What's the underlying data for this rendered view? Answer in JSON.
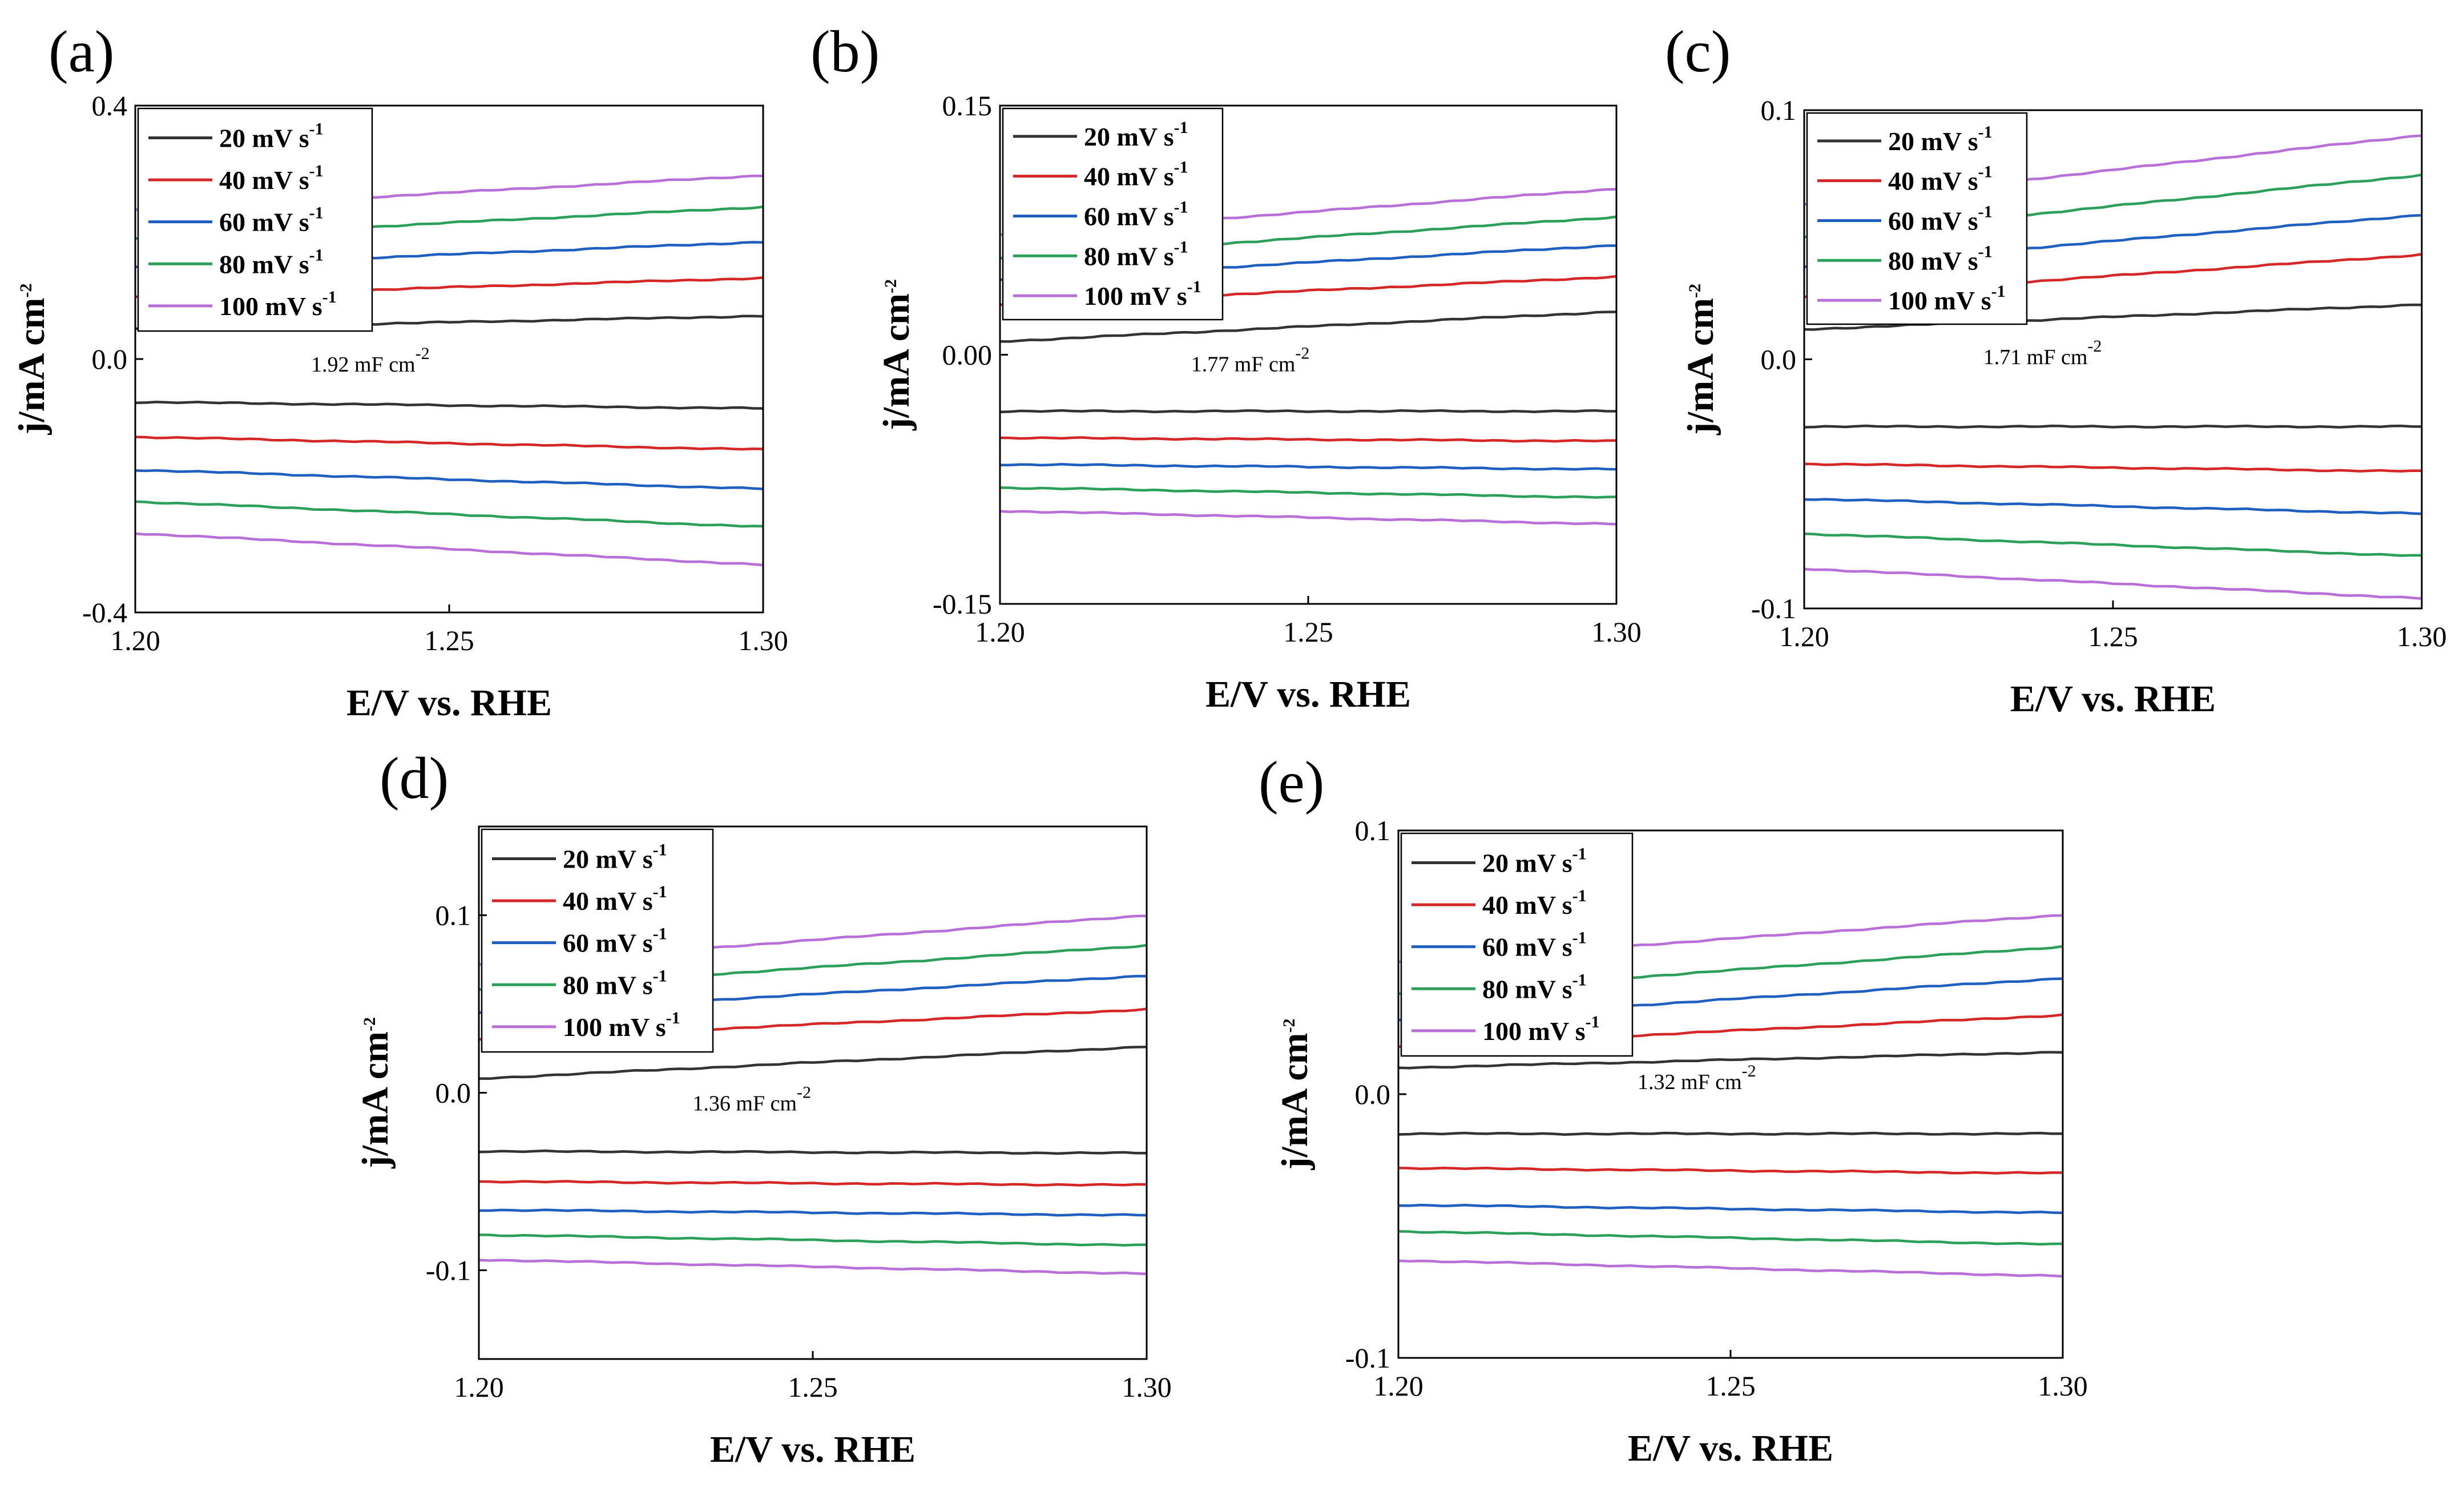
{
  "chart_data": [
    {
      "type": "line",
      "panel_label": "(a)",
      "xlabel": "E/V vs. RHE",
      "ylabel": "j/mA cm",
      "ylabel_sup": "-2",
      "xlim": [
        1.2,
        1.3
      ],
      "ylim": [
        -0.4,
        0.4
      ],
      "x_ticks": [
        "1.20",
        "1.25",
        "1.30"
      ],
      "y_ticks": [
        {
          "v": 0.4,
          "label": "0.4"
        },
        {
          "v": 0.0,
          "label": "0.0"
        },
        {
          "v": -0.4,
          "label": "-0.4"
        }
      ],
      "legend": [
        "20 mV s",
        "40 mV s",
        "60 mV s",
        "80 mV s",
        "100 mV s"
      ],
      "legend_sup": "-1",
      "annotation": {
        "text": "1.92 mF cm",
        "sup": "-2",
        "x": 1.228,
        "y": -0.02
      },
      "series": [
        {
          "name": "20 mV s-1",
          "color": "#333333",
          "anodic": [
            0.048,
            0.068
          ],
          "cathodic": [
            -0.068,
            -0.078
          ]
        },
        {
          "name": "40 mV s-1",
          "color": "#d62728",
          "anodic": [
            0.098,
            0.128
          ],
          "cathodic": [
            -0.123,
            -0.143
          ]
        },
        {
          "name": "60 mV s-1",
          "color": "#1f5fbf",
          "anodic": [
            0.145,
            0.185
          ],
          "cathodic": [
            -0.175,
            -0.205
          ]
        },
        {
          "name": "80 mV s-1",
          "color": "#2ca05a",
          "anodic": [
            0.19,
            0.24
          ],
          "cathodic": [
            -0.225,
            -0.265
          ]
        },
        {
          "name": "100 mV s-1",
          "color": "#b86fd8",
          "anodic": [
            0.235,
            0.29
          ],
          "cathodic": [
            -0.275,
            -0.325
          ]
        }
      ]
    },
    {
      "type": "line",
      "panel_label": "(b)",
      "xlabel": "E/V vs. RHE",
      "ylabel": "j/mA cm",
      "ylabel_sup": "-2",
      "xlim": [
        1.2,
        1.3
      ],
      "ylim": [
        -0.15,
        0.15
      ],
      "x_ticks": [
        "1.20",
        "1.25",
        "1.30"
      ],
      "y_ticks": [
        {
          "v": 0.15,
          "label": "0.15"
        },
        {
          "v": 0.0,
          "label": "0.00"
        },
        {
          "v": -0.15,
          "label": "-0.15"
        }
      ],
      "legend": [
        "20 mV s",
        "40 mV s",
        "60 mV s",
        "80 mV s",
        "100 mV s"
      ],
      "legend_sup": "-1",
      "annotation": {
        "text": "1.77 mF cm",
        "sup": "-2",
        "x": 1.231,
        "y": -0.01
      },
      "series": [
        {
          "name": "20 mV s-1",
          "color": "#333333",
          "anodic": [
            0.008,
            0.026
          ],
          "cathodic": [
            -0.034,
            -0.034
          ]
        },
        {
          "name": "40 mV s-1",
          "color": "#d62728",
          "anodic": [
            0.03,
            0.047
          ],
          "cathodic": [
            -0.05,
            -0.052
          ]
        },
        {
          "name": "60 mV s-1",
          "color": "#1f5fbf",
          "anodic": [
            0.045,
            0.066
          ],
          "cathodic": [
            -0.066,
            -0.069
          ]
        },
        {
          "name": "80 mV s-1",
          "color": "#2ca05a",
          "anodic": [
            0.058,
            0.083
          ],
          "cathodic": [
            -0.08,
            -0.086
          ]
        },
        {
          "name": "100 mV s-1",
          "color": "#b86fd8",
          "anodic": [
            0.072,
            0.1
          ],
          "cathodic": [
            -0.094,
            -0.102
          ]
        }
      ]
    },
    {
      "type": "line",
      "panel_label": "(c)",
      "xlabel": "E/V vs. RHE",
      "ylabel": "j/mA cm",
      "ylabel_sup": "-2",
      "xlim": [
        1.2,
        1.3
      ],
      "ylim": [
        -0.1,
        0.1
      ],
      "x_ticks": [
        "1.20",
        "1.25",
        "1.30"
      ],
      "y_ticks": [
        {
          "v": 0.1,
          "label": "0.1"
        },
        {
          "v": 0.0,
          "label": "0.0"
        },
        {
          "v": -0.1,
          "label": "-0.1"
        }
      ],
      "legend": [
        "20 mV s",
        "40 mV s",
        "60 mV s",
        "80 mV s",
        "100 mV s"
      ],
      "legend_sup": "-1",
      "annotation": {
        "text": "1.71 mF cm",
        "sup": "-2",
        "x": 1.229,
        "y": -0.002
      },
      "series": [
        {
          "name": "20 mV s-1",
          "color": "#333333",
          "anodic": [
            0.012,
            0.022
          ],
          "cathodic": [
            -0.027,
            -0.027
          ]
        },
        {
          "name": "40 mV s-1",
          "color": "#d62728",
          "anodic": [
            0.025,
            0.042
          ],
          "cathodic": [
            -0.042,
            -0.045
          ]
        },
        {
          "name": "60 mV s-1",
          "color": "#1f5fbf",
          "anodic": [
            0.037,
            0.058
          ],
          "cathodic": [
            -0.056,
            -0.062
          ]
        },
        {
          "name": "80 mV s-1",
          "color": "#2ca05a",
          "anodic": [
            0.049,
            0.074
          ],
          "cathodic": [
            -0.07,
            -0.079
          ]
        },
        {
          "name": "100 mV s-1",
          "color": "#b86fd8",
          "anodic": [
            0.062,
            0.09
          ],
          "cathodic": [
            -0.084,
            -0.096
          ]
        }
      ]
    },
    {
      "type": "line",
      "panel_label": "(d)",
      "xlabel": "E/V vs. RHE",
      "ylabel": "j/mA cm",
      "ylabel_sup": "-2",
      "xlim": [
        1.2,
        1.3
      ],
      "ylim": [
        -0.15,
        0.15
      ],
      "x_ticks": [
        "1.20",
        "1.25",
        "1.30"
      ],
      "y_ticks": [
        {
          "v": 0.1,
          "label": "0.1"
        },
        {
          "v": 0.0,
          "label": "0.0"
        },
        {
          "v": -0.1,
          "label": "-0.1"
        }
      ],
      "legend": [
        "20 mV s",
        "40 mV s",
        "60 mV s",
        "80 mV s",
        "100 mV s"
      ],
      "legend_sup": "-1",
      "annotation": {
        "text": "1.36 mF cm",
        "sup": "-2",
        "x": 1.232,
        "y": -0.01
      },
      "series": [
        {
          "name": "20 mV s-1",
          "color": "#333333",
          "anodic": [
            0.008,
            0.026
          ],
          "cathodic": [
            -0.033,
            -0.034
          ]
        },
        {
          "name": "40 mV s-1",
          "color": "#d62728",
          "anodic": [
            0.03,
            0.047
          ],
          "cathodic": [
            -0.05,
            -0.052
          ]
        },
        {
          "name": "60 mV s-1",
          "color": "#1f5fbf",
          "anodic": [
            0.045,
            0.066
          ],
          "cathodic": [
            -0.066,
            -0.069
          ]
        },
        {
          "name": "80 mV s-1",
          "color": "#2ca05a",
          "anodic": [
            0.058,
            0.083
          ],
          "cathodic": [
            -0.08,
            -0.086
          ]
        },
        {
          "name": "100 mV s-1",
          "color": "#b86fd8",
          "anodic": [
            0.072,
            0.1
          ],
          "cathodic": [
            -0.094,
            -0.102
          ]
        }
      ]
    },
    {
      "type": "line",
      "panel_label": "(e)",
      "xlabel": "E/V vs. RHE",
      "ylabel": "j/mA cm",
      "ylabel_sup": "-2",
      "xlim": [
        1.2,
        1.3
      ],
      "ylim": [
        -0.1,
        0.1
      ],
      "x_ticks": [
        "1.20",
        "1.25",
        "1.30"
      ],
      "y_ticks": [
        {
          "v": 0.1,
          "label": "0.1"
        },
        {
          "v": 0.0,
          "label": "0.0"
        },
        {
          "v": -0.1,
          "label": "-0.1"
        }
      ],
      "legend": [
        "20 mV s",
        "40 mV s",
        "60 mV s",
        "80 mV s",
        "100 mV s"
      ],
      "legend_sup": "-1",
      "annotation": {
        "text": "1.32 mF cm",
        "sup": "-2",
        "x": 1.236,
        "y": 0.002
      },
      "series": [
        {
          "name": "20 mV s-1",
          "color": "#333333",
          "anodic": [
            0.01,
            0.016
          ],
          "cathodic": [
            -0.015,
            -0.015
          ]
        },
        {
          "name": "40 mV s-1",
          "color": "#d62728",
          "anodic": [
            0.018,
            0.03
          ],
          "cathodic": [
            -0.028,
            -0.03
          ]
        },
        {
          "name": "60 mV s-1",
          "color": "#1f5fbf",
          "anodic": [
            0.028,
            0.044
          ],
          "cathodic": [
            -0.042,
            -0.045
          ]
        },
        {
          "name": "80 mV s-1",
          "color": "#2ca05a",
          "anodic": [
            0.038,
            0.056
          ],
          "cathodic": [
            -0.052,
            -0.057
          ]
        },
        {
          "name": "100 mV s-1",
          "color": "#b86fd8",
          "anodic": [
            0.05,
            0.068
          ],
          "cathodic": [
            -0.063,
            -0.069
          ]
        }
      ]
    }
  ]
}
